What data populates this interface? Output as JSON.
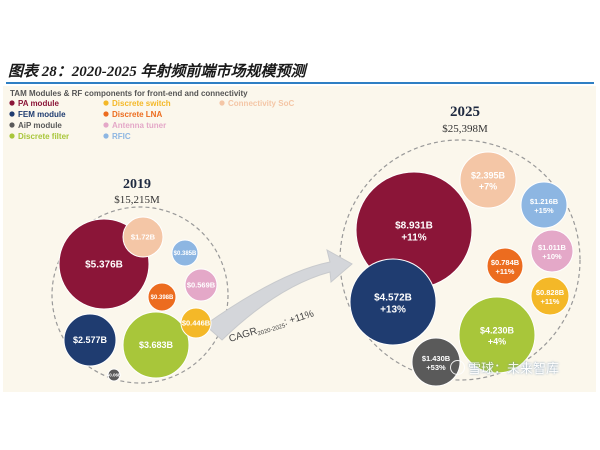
{
  "figure": {
    "title": "图表 28：2020-2025 年射频前端市场规模预测",
    "watermark": "雪球：未来智库"
  },
  "chart_data": {
    "type": "bubble",
    "title": "TAM Modules & RF components for front-end and connectivity",
    "legend": [
      {
        "name": "PA module",
        "color": "#8b1538"
      },
      {
        "name": "FEM module",
        "color": "#1f3c70"
      },
      {
        "name": "AiP module",
        "color": "#5a5a5a"
      },
      {
        "name": "Discrete filter",
        "color": "#a8c63a"
      },
      {
        "name": "Discrete switch",
        "color": "#f4b828"
      },
      {
        "name": "Discrete LNA",
        "color": "#ec6c1f"
      },
      {
        "name": "Antenna tuner",
        "color": "#e4a8c8"
      },
      {
        "name": "RFIC",
        "color": "#8db6e2"
      },
      {
        "name": "Connectivity SoC",
        "color": "#f4c6a6"
      }
    ],
    "groups": [
      {
        "year": "2019",
        "total": "$15,215M",
        "bubbles": [
          {
            "name": "PA module",
            "value": 5.376,
            "label": "$5.376B",
            "sub": ""
          },
          {
            "name": "Discrete filter",
            "value": 3.683,
            "label": "$3.683B",
            "sub": ""
          },
          {
            "name": "FEM module",
            "value": 2.577,
            "label": "$2.577B",
            "sub": ""
          },
          {
            "name": "Connectivity SoC",
            "value": 1.72,
            "label": "$1.72B",
            "sub": ""
          },
          {
            "name": "Antenna tuner",
            "value": 0.569,
            "label": "$0.569B",
            "sub": ""
          },
          {
            "name": "Discrete switch",
            "value": 0.446,
            "label": "$0.446B",
            "sub": ""
          },
          {
            "name": "Discrete LNA",
            "value": 0.398,
            "label": "$0.398B",
            "sub": ""
          },
          {
            "name": "RFIC",
            "value": 0.385,
            "label": "$0.385B",
            "sub": ""
          },
          {
            "name": "AiP module",
            "value": 0.06,
            "label": "$0.06B",
            "sub": ""
          }
        ]
      },
      {
        "year": "2025",
        "total": "$25,398M",
        "bubbles": [
          {
            "name": "PA module",
            "value": 8.931,
            "label": "$8.931B",
            "sub": "+11%"
          },
          {
            "name": "FEM module",
            "value": 4.572,
            "label": "$4.572B",
            "sub": "+13%"
          },
          {
            "name": "Discrete filter",
            "value": 4.23,
            "label": "$4.230B",
            "sub": "+4%"
          },
          {
            "name": "Connectivity SoC",
            "value": 2.395,
            "label": "$2.395B",
            "sub": "+7%"
          },
          {
            "name": "AiP module",
            "value": 1.43,
            "label": "$1.430B",
            "sub": "+53%"
          },
          {
            "name": "RFIC",
            "value": 1.216,
            "label": "$1.216B",
            "sub": "+15%"
          },
          {
            "name": "Antenna tuner",
            "value": 1.011,
            "label": "$1.011B",
            "sub": "+10%"
          },
          {
            "name": "Discrete switch",
            "value": 0.828,
            "label": "$0.828B",
            "sub": "+11%"
          },
          {
            "name": "Discrete LNA",
            "value": 0.784,
            "label": "$0.784B",
            "sub": "+11%"
          }
        ]
      }
    ],
    "annotation": {
      "text": "CAGR",
      "subscript": "2020-2025",
      "suffix": ": +11%"
    }
  }
}
